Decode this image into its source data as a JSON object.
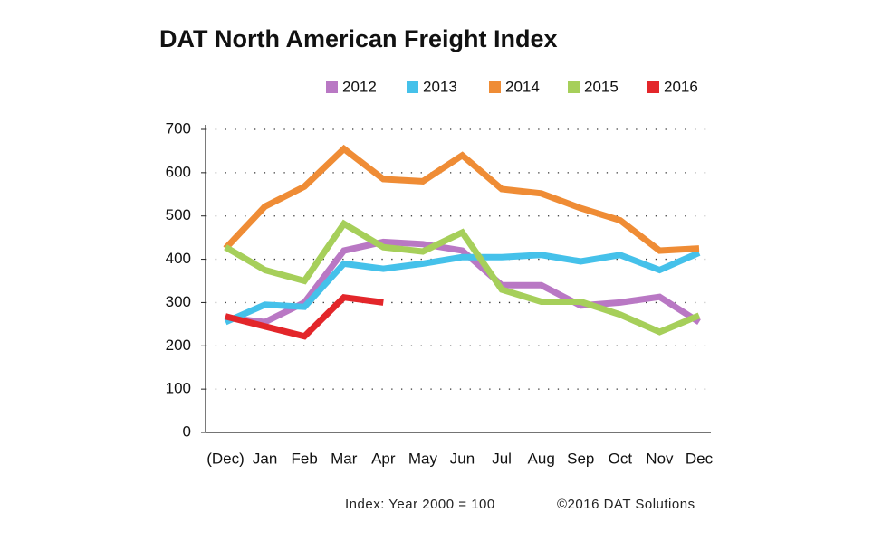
{
  "chart_data": {
    "type": "line",
    "title": "DAT North American Freight Index",
    "categories": [
      "(Dec)",
      "Jan",
      "Feb",
      "Mar",
      "Apr",
      "May",
      "Jun",
      "Jul",
      "Aug",
      "Sep",
      "Oct",
      "Nov",
      "Dec"
    ],
    "series": [
      {
        "name": "2012",
        "color": "#b978c4",
        "values": [
          265,
          255,
          300,
          420,
          440,
          435,
          420,
          340,
          340,
          293,
          300,
          313,
          255
        ]
      },
      {
        "name": "2013",
        "color": "#45c1ea",
        "values": [
          255,
          295,
          290,
          390,
          378,
          390,
          405,
          405,
          410,
          395,
          410,
          375,
          415
        ]
      },
      {
        "name": "2014",
        "color": "#ef8c35",
        "values": [
          425,
          522,
          568,
          655,
          585,
          580,
          640,
          562,
          552,
          518,
          490,
          420,
          425
        ]
      },
      {
        "name": "2015",
        "color": "#a6cf5a",
        "values": [
          428,
          375,
          350,
          482,
          428,
          418,
          462,
          330,
          302,
          302,
          272,
          232,
          270
        ]
      },
      {
        "name": "2016",
        "color": "#e3262a",
        "values": [
          268,
          245,
          222,
          312,
          300,
          null,
          null,
          null,
          null,
          null,
          null,
          null,
          null
        ]
      }
    ],
    "ylim": [
      0,
      700
    ],
    "yticks": [
      0,
      100,
      200,
      300,
      400,
      500,
      600,
      700
    ],
    "grid": true,
    "footnotes": [
      "Index: Year 2000 = 100",
      "©2016 DAT Solutions"
    ]
  }
}
